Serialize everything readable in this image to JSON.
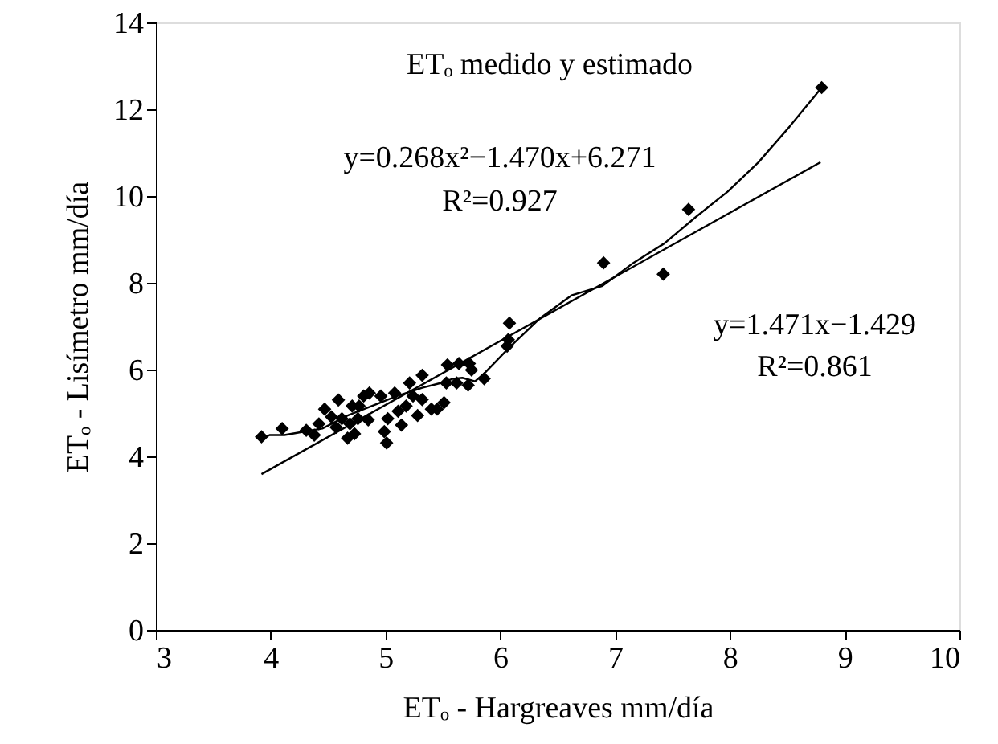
{
  "chart_data": {
    "type": "scatter",
    "title": "ETₒ medido y estimado",
    "xlabel": "ETₒ - Hargreaves mm/día",
    "ylabel": "ETₒ - Lisímetro mm/día",
    "xlim": [
      3,
      10
    ],
    "xticks": [
      3,
      4,
      5,
      6,
      7,
      8,
      9,
      10
    ],
    "ylim": [
      0,
      14
    ],
    "yticks": [
      0,
      2,
      4,
      6,
      8,
      10,
      12,
      14
    ],
    "grid": false,
    "annotations": [
      "y=0.268x²−1.470x+6.271",
      "R²=0.927",
      "y=1.471x−1.429",
      "R²=0.861"
    ],
    "series": [
      {
        "marker": "diamond",
        "color": "#000000",
        "x": [
          3.92,
          4.1,
          4.31,
          4.38,
          4.42,
          4.47,
          4.53,
          4.57,
          4.59,
          4.62,
          4.67,
          4.69,
          4.71,
          4.73,
          4.76,
          4.77,
          4.81,
          4.86,
          4.85,
          4.96,
          4.99,
          5.01,
          5.02,
          5.08,
          5.11,
          5.14,
          5.18,
          5.21,
          5.24,
          5.28,
          5.32,
          5.32,
          5.4,
          5.45,
          5.51,
          5.53,
          5.54,
          5.62,
          5.64,
          5.72,
          5.73,
          5.75,
          5.86,
          6.06,
          6.07,
          6.08,
          6.9,
          7.42,
          7.64,
          8.8
        ],
        "values": [
          4.45,
          4.64,
          4.6,
          4.49,
          4.75,
          5.09,
          4.91,
          4.67,
          5.3,
          4.87,
          4.42,
          4.75,
          5.16,
          4.52,
          4.87,
          5.16,
          5.39,
          5.46,
          4.84,
          5.39,
          4.57,
          4.31,
          4.87,
          5.46,
          5.04,
          4.72,
          5.16,
          5.69,
          5.39,
          4.94,
          5.31,
          5.87,
          5.09,
          5.09,
          5.24,
          5.69,
          6.11,
          5.69,
          6.14,
          5.64,
          6.14,
          5.99,
          5.79,
          6.54,
          6.69,
          7.07,
          8.46,
          8.2,
          9.69,
          12.5
        ]
      },
      {
        "type": "line",
        "marker": "none",
        "line_style": "solid",
        "color": "#000000",
        "x": [
          3.92,
          3.99,
          4.12,
          4.29,
          4.45,
          4.67,
          4.88,
          5.1,
          5.32,
          5.48,
          5.59,
          5.67,
          5.78,
          5.86,
          6.08,
          6.35,
          6.62,
          6.89,
          7.16,
          7.43,
          7.7,
          7.98,
          8.25,
          8.52,
          8.8
        ],
        "values": [
          4.39,
          4.49,
          4.49,
          4.57,
          4.64,
          4.94,
          5.16,
          5.39,
          5.58,
          5.69,
          5.79,
          5.81,
          5.73,
          5.91,
          6.51,
          7.19,
          7.71,
          7.93,
          8.46,
          8.91,
          9.51,
          10.1,
          10.78,
          11.6,
          12.5
        ]
      },
      {
        "type": "line",
        "marker": "none",
        "line_style": "solid",
        "color": "#000000",
        "x": [
          3.92,
          8.79
        ],
        "values": [
          3.59,
          10.78
        ]
      }
    ]
  }
}
